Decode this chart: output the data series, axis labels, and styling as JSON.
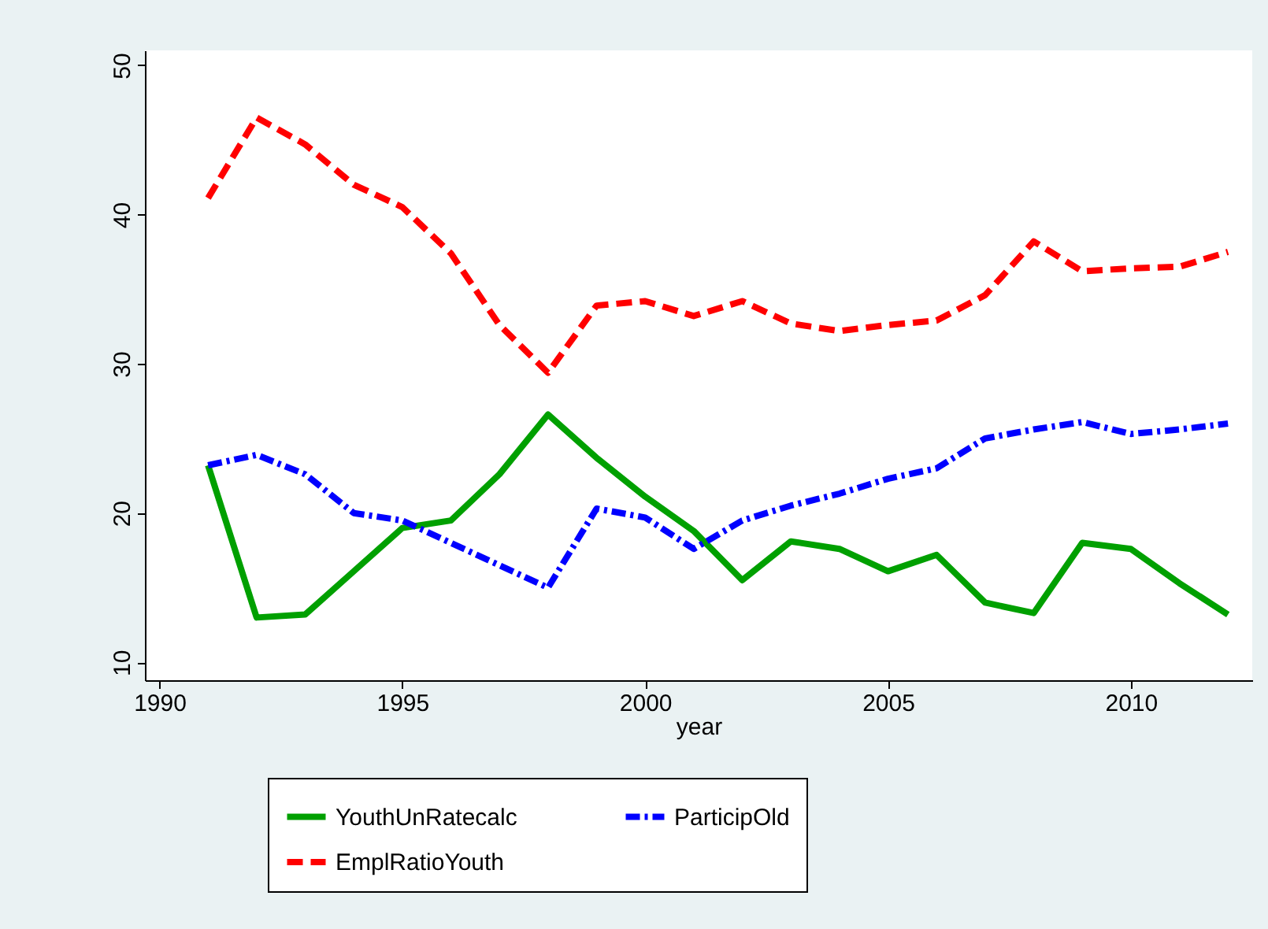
{
  "chart_data": {
    "type": "line",
    "xlabel": "year",
    "x": [
      1991,
      1992,
      1993,
      1994,
      1995,
      1996,
      1997,
      1998,
      1999,
      2000,
      2001,
      2002,
      2003,
      2004,
      2005,
      2006,
      2007,
      2008,
      2009,
      2010,
      2011,
      2012
    ],
    "series": [
      {
        "name": "YouthUnRatecalc",
        "color": "#00a000",
        "line_style": "solid",
        "values": [
          23.2,
          13.0,
          13.2,
          16.1,
          19.0,
          19.5,
          22.6,
          26.6,
          23.7,
          21.1,
          18.8,
          15.5,
          18.1,
          17.6,
          16.1,
          17.2,
          14.0,
          13.3,
          18.0,
          17.6,
          15.3,
          13.2
        ]
      },
      {
        "name": "EmplRatioYouth",
        "color": "#ff0000",
        "line_style": "dashed",
        "values": [
          41.1,
          46.5,
          44.7,
          42.0,
          40.5,
          37.4,
          32.6,
          29.4,
          33.9,
          34.2,
          33.2,
          34.2,
          32.7,
          32.2,
          32.6,
          32.9,
          34.6,
          38.2,
          36.2,
          36.4,
          36.5,
          37.5
        ]
      },
      {
        "name": "ParticipOld",
        "color": "#0000ff",
        "line_style": "dotted",
        "values": [
          23.2,
          23.9,
          22.6,
          20.0,
          19.5,
          18.0,
          16.5,
          15.0,
          20.3,
          19.7,
          17.6,
          19.5,
          20.5,
          21.3,
          22.3,
          23.0,
          25.0,
          25.6,
          26.1,
          25.3,
          25.6,
          26.0
        ]
      }
    ],
    "xlim": [
      1989.7,
      2012.5
    ],
    "ylim": [
      8.8,
      51
    ],
    "xticks": [
      1990,
      1995,
      2000,
      2005,
      2010
    ],
    "yticks": [
      10,
      20,
      30,
      40,
      50
    ],
    "grid": false,
    "legend": "bottom",
    "marker": "none"
  }
}
